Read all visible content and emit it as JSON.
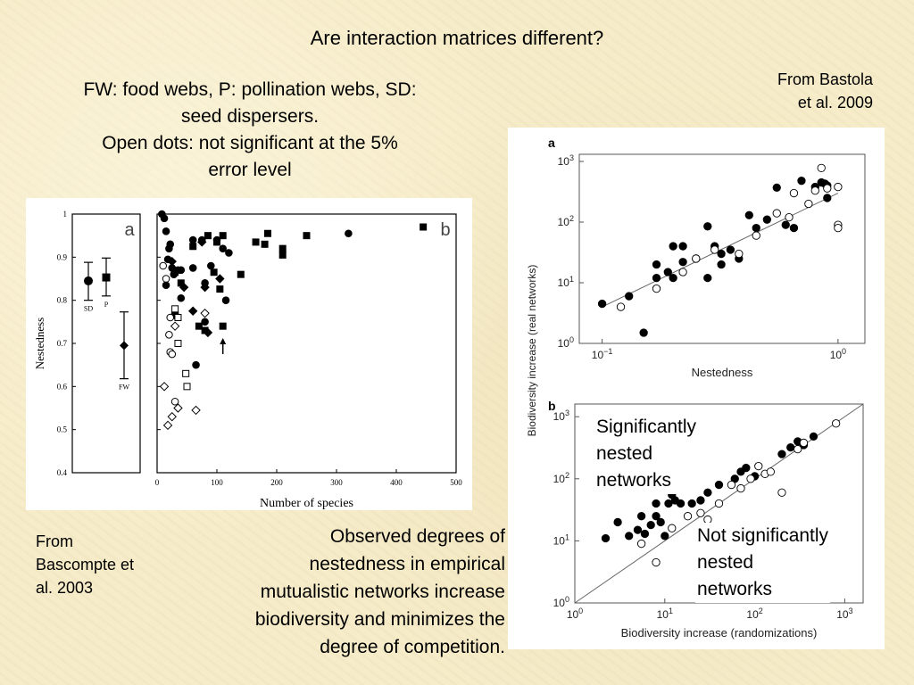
{
  "slide": {
    "title": "Are interaction matrices different?",
    "caption_top": [
      "FW: food webs, P: pollination webs, SD:",
      "seed dispersers.",
      "Open dots: not significant at the 5%",
      "error level"
    ],
    "source_right": [
      "From Bastola",
      "et al. 2009"
    ],
    "source_left": [
      "From",
      "Bascompte et",
      "al. 2003"
    ],
    "caption_bottom": [
      "Observed degrees of",
      "nestedness in empirical",
      "mutualistic networks increase",
      "biodiversity and minimizes the",
      "degree of competition."
    ],
    "annotation_significant": [
      "Significantly",
      "nested",
      "networks"
    ],
    "annotation_not_significant": [
      "Not significantly",
      "nested",
      "networks"
    ]
  },
  "chart_data": [
    {
      "id": "bascompte-a",
      "type": "scatter",
      "panel_label": "a",
      "ylabel": "Nestedness",
      "ylim": [
        0.4,
        1.0
      ],
      "y_ticks": [
        "0.4",
        "0.5",
        "0.6",
        "0.7",
        "0.8",
        "0.9",
        "1"
      ],
      "points": [
        {
          "label": "SD",
          "value": 0.845,
          "err_low": 0.8,
          "err_high": 0.888,
          "marker": "circle"
        },
        {
          "label": "P",
          "value": 0.853,
          "err_low": 0.81,
          "err_high": 0.898,
          "marker": "square"
        },
        {
          "label": "FW",
          "value": 0.695,
          "err_low": 0.618,
          "err_high": 0.773,
          "marker": "diamond"
        }
      ]
    },
    {
      "id": "bascompte-b",
      "type": "scatter",
      "panel_label": "b",
      "xlabel": "Number of species",
      "xlim": [
        0,
        500
      ],
      "ylim": [
        0.4,
        1.0
      ],
      "x_ticks": [
        "0",
        "100",
        "200",
        "300",
        "400",
        "500"
      ],
      "arrow_point": [
        110,
        0.7
      ],
      "series": [
        {
          "marker": "filled-circle",
          "points": [
            [
              8,
              1.0
            ],
            [
              12,
              0.99
            ],
            [
              15,
              0.96
            ],
            [
              20,
              0.92
            ],
            [
              22,
              0.93
            ],
            [
              18,
              0.895
            ],
            [
              25,
              0.875
            ],
            [
              35,
              0.87
            ],
            [
              28,
              0.86
            ],
            [
              40,
              0.87
            ],
            [
              40,
              0.805
            ],
            [
              15,
              0.835
            ],
            [
              30,
              0.77
            ],
            [
              60,
              0.94
            ],
            [
              75,
              0.94
            ],
            [
              60,
              0.875
            ],
            [
              80,
              0.84
            ],
            [
              90,
              0.88
            ],
            [
              110,
              0.92
            ],
            [
              120,
              0.91
            ],
            [
              80,
              0.75
            ],
            [
              65,
              0.65
            ],
            [
              100,
              0.94
            ],
            [
              115,
              0.8
            ],
            [
              320,
              0.955
            ]
          ]
        },
        {
          "marker": "filled-square",
          "points": [
            [
              30,
              0.865
            ],
            [
              40,
              0.84
            ],
            [
              60,
              0.925
            ],
            [
              85,
              0.95
            ],
            [
              100,
              0.935
            ],
            [
              110,
              0.95
            ],
            [
              70,
              0.74
            ],
            [
              95,
              0.865
            ],
            [
              105,
              0.826
            ],
            [
              110,
              0.74
            ],
            [
              140,
              0.86
            ],
            [
              165,
              0.935
            ],
            [
              185,
              0.955
            ],
            [
              210,
              0.92
            ],
            [
              210,
              0.905
            ],
            [
              180,
              0.93
            ],
            [
              250,
              0.95
            ],
            [
              445,
              0.97
            ],
            [
              80,
              0.73
            ]
          ]
        },
        {
          "marker": "filled-diamond",
          "points": [
            [
              30,
              0.765
            ],
            [
              45,
              0.83
            ],
            [
              60,
              0.775
            ],
            [
              75,
              0.935
            ],
            [
              80,
              0.83
            ],
            [
              85,
              0.725
            ],
            [
              105,
              0.85
            ],
            [
              25,
              0.89
            ]
          ]
        },
        {
          "marker": "open-circle",
          "points": [
            [
              10,
              0.88
            ],
            [
              15,
              0.85
            ],
            [
              20,
              0.72
            ],
            [
              22,
              0.68
            ],
            [
              25,
              0.675
            ],
            [
              30,
              0.565
            ],
            [
              22,
              0.76
            ]
          ]
        },
        {
          "marker": "open-square",
          "points": [
            [
              30,
              0.78
            ],
            [
              35,
              0.76
            ],
            [
              35,
              0.7
            ],
            [
              48,
              0.63
            ],
            [
              50,
              0.6
            ]
          ]
        },
        {
          "marker": "open-diamond",
          "points": [
            [
              12,
              0.6
            ],
            [
              18,
              0.51
            ],
            [
              25,
              0.53
            ],
            [
              35,
              0.55
            ],
            [
              65,
              0.545
            ],
            [
              30,
              0.74
            ],
            [
              80,
              0.77
            ]
          ]
        }
      ]
    },
    {
      "id": "bastola-a",
      "type": "scatter",
      "panel_label": "a",
      "xlabel": "Nestedness",
      "ylabel": "Biodiversity increase (real networks)",
      "log_x": true,
      "log_y": true,
      "xlim": [
        0.08,
        1.3
      ],
      "ylim": [
        1,
        1000
      ],
      "x_ticks": [
        {
          "value": 0.1,
          "base": "10",
          "exp": "−1"
        },
        {
          "value": 1,
          "base": "10",
          "exp": "0"
        }
      ],
      "y_ticks": [
        {
          "value": 1,
          "base": "10",
          "exp": "0"
        },
        {
          "value": 10,
          "base": "10",
          "exp": "1"
        },
        {
          "value": 100,
          "base": "10",
          "exp": "2"
        },
        {
          "value": 1000,
          "base": "10",
          "exp": "3"
        }
      ],
      "fit_line": [
        [
          0.1,
          4
        ],
        [
          1,
          300
        ]
      ],
      "series": [
        {
          "marker": "filled",
          "points": [
            [
              0.1,
              4.5
            ],
            [
              0.13,
              6
            ],
            [
              0.15,
              1.5
            ],
            [
              0.17,
              20
            ],
            [
              0.17,
              12
            ],
            [
              0.19,
              15
            ],
            [
              0.2,
              40
            ],
            [
              0.2,
              12
            ],
            [
              0.22,
              22
            ],
            [
              0.25,
              25
            ],
            [
              0.28,
              12
            ],
            [
              0.3,
              40
            ],
            [
              0.32,
              30
            ],
            [
              0.32,
              20
            ],
            [
              0.35,
              35
            ],
            [
              0.38,
              25
            ],
            [
              0.42,
              130
            ],
            [
              0.45,
              80
            ],
            [
              0.5,
              110
            ],
            [
              0.55,
              370
            ],
            [
              0.6,
              90
            ],
            [
              0.65,
              80
            ],
            [
              0.7,
              480
            ],
            [
              0.8,
              380
            ],
            [
              0.85,
              450
            ],
            [
              0.88,
              430
            ],
            [
              0.9,
              250
            ],
            [
              0.9,
              400
            ],
            [
              0.28,
              85
            ],
            [
              0.22,
              40
            ]
          ]
        },
        {
          "marker": "open",
          "points": [
            [
              0.12,
              4
            ],
            [
              0.17,
              8
            ],
            [
              0.22,
              15
            ],
            [
              0.25,
              25
            ],
            [
              0.3,
              35
            ],
            [
              0.38,
              30
            ],
            [
              0.45,
              60
            ],
            [
              0.55,
              140
            ],
            [
              0.62,
              120
            ],
            [
              0.65,
              300
            ],
            [
              0.75,
              200
            ],
            [
              0.8,
              330
            ],
            [
              0.85,
              780
            ],
            [
              0.9,
              360
            ],
            [
              1.0,
              380
            ],
            [
              1.0,
              90
            ],
            [
              1.0,
              80
            ]
          ]
        }
      ]
    },
    {
      "id": "bastola-b",
      "type": "scatter",
      "panel_label": "b",
      "xlabel": "Biodiversity increase (randomizations)",
      "log_x": true,
      "log_y": true,
      "xlim": [
        1,
        1600
      ],
      "ylim": [
        1,
        1600
      ],
      "x_ticks": [
        {
          "value": 1,
          "base": "10",
          "exp": "0"
        },
        {
          "value": 10,
          "base": "10",
          "exp": "1"
        },
        {
          "value": 100,
          "base": "10",
          "exp": "2"
        },
        {
          "value": 1000,
          "base": "10",
          "exp": "3"
        }
      ],
      "y_ticks": [
        {
          "value": 1,
          "base": "10",
          "exp": "0"
        },
        {
          "value": 10,
          "base": "10",
          "exp": "1"
        },
        {
          "value": 100,
          "base": "10",
          "exp": "2"
        },
        {
          "value": 1000,
          "base": "10",
          "exp": "3"
        }
      ],
      "diagonal": true,
      "series": [
        {
          "marker": "filled",
          "points": [
            [
              2.2,
              11
            ],
            [
              3,
              20
            ],
            [
              4,
              12
            ],
            [
              5,
              15
            ],
            [
              5.5,
              25
            ],
            [
              6,
              13
            ],
            [
              7,
              18
            ],
            [
              8,
              25
            ],
            [
              9,
              20
            ],
            [
              10,
              12
            ],
            [
              11,
              40
            ],
            [
              13,
              45
            ],
            [
              15,
              40
            ],
            [
              17,
              80
            ],
            [
              20,
              40
            ],
            [
              25,
              45
            ],
            [
              30,
              60
            ],
            [
              40,
              80
            ],
            [
              60,
              100
            ],
            [
              70,
              130
            ],
            [
              80,
              150
            ],
            [
              100,
              110
            ],
            [
              200,
              250
            ],
            [
              250,
              320
            ],
            [
              300,
              400
            ],
            [
              350,
              350
            ],
            [
              450,
              480
            ],
            [
              8,
              40
            ],
            [
              12,
              55
            ]
          ]
        },
        {
          "marker": "open",
          "points": [
            [
              5.5,
              9
            ],
            [
              8,
              4.5
            ],
            [
              12,
              16
            ],
            [
              18,
              25
            ],
            [
              25,
              28
            ],
            [
              30,
              22
            ],
            [
              40,
              40
            ],
            [
              55,
              80
            ],
            [
              70,
              70
            ],
            [
              90,
              100
            ],
            [
              110,
              160
            ],
            [
              130,
              120
            ],
            [
              150,
              130
            ],
            [
              200,
              60
            ],
            [
              300,
              300
            ],
            [
              350,
              380
            ],
            [
              800,
              780
            ]
          ]
        }
      ]
    }
  ]
}
